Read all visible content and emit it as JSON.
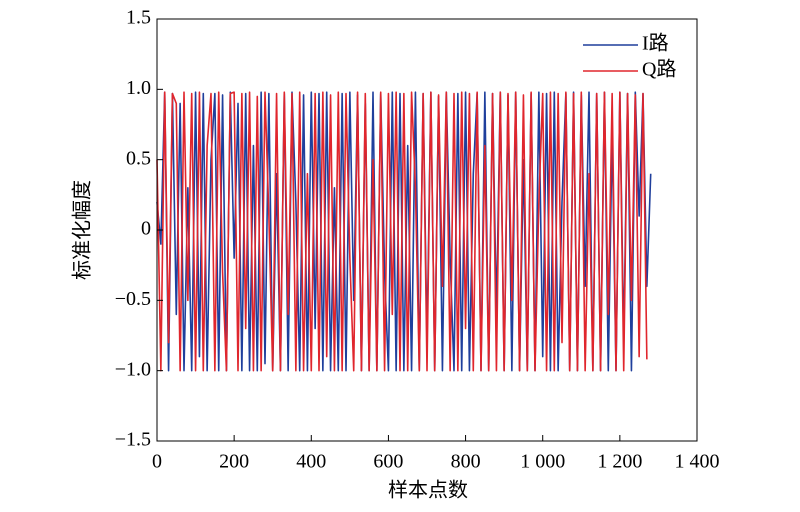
{
  "chart_data": {
    "type": "line",
    "xlabel": "样本点数",
    "ylabel": "标准化幅度",
    "x": [
      0,
      10,
      20,
      30,
      40,
      50,
      60,
      70,
      80,
      90,
      100,
      110,
      120,
      130,
      140,
      150,
      160,
      170,
      180,
      190,
      200,
      210,
      220,
      230,
      240,
      250,
      260,
      270,
      280,
      290,
      300,
      310,
      320,
      330,
      340,
      350,
      360,
      370,
      380,
      390,
      400,
      410,
      420,
      430,
      440,
      450,
      460,
      470,
      480,
      490,
      500,
      510,
      520,
      530,
      540,
      550,
      560,
      570,
      580,
      590,
      600,
      610,
      620,
      630,
      640,
      650,
      660,
      670,
      680,
      690,
      700,
      710,
      720,
      730,
      740,
      750,
      760,
      770,
      780,
      790,
      800,
      810,
      820,
      830,
      840,
      850,
      860,
      870,
      880,
      890,
      900,
      910,
      920,
      930,
      940,
      950,
      960,
      970,
      980,
      990,
      1000,
      1010,
      1020,
      1030,
      1040,
      1050,
      1060,
      1070,
      1080,
      1090,
      1100,
      1110,
      1120,
      1130,
      1140,
      1150,
      1160,
      1170,
      1180,
      1190,
      1200,
      1210,
      1220,
      1230,
      1240,
      1250,
      1260,
      1270,
      1280
    ],
    "series": [
      {
        "name": "I路",
        "color": "#1f3f9c",
        "values": [
          0.2,
          -0.1,
          0.98,
          -1,
          0.97,
          -0.6,
          0.9,
          -1,
          0.3,
          -1,
          0.98,
          -0.9,
          0.97,
          -1,
          0.5,
          0.97,
          -1,
          0.96,
          -1,
          0.98,
          -0.2,
          0.9,
          -1,
          0.97,
          -1,
          0.6,
          -1,
          0.98,
          -0.95,
          0.97,
          -1,
          0.4,
          -1,
          0.97,
          -1,
          0.98,
          0.2,
          -1,
          0.96,
          -1,
          0.98,
          -0.7,
          0.97,
          -1,
          0.98,
          -1,
          0.3,
          -1,
          0.97,
          -1,
          0.98,
          -0.5,
          0.96,
          -1,
          0.9,
          -1,
          0.98,
          -1,
          0.97,
          -0.3,
          -1,
          0.98,
          -1,
          0.97,
          -1,
          0.6,
          -1,
          0.98,
          -1,
          0.97,
          -0.8,
          0.98,
          -1,
          0.95,
          -1,
          0.98,
          -0.2,
          -1,
          0.97,
          -1,
          0.98,
          -1,
          0.4,
          0.97,
          -1,
          0.98,
          -1,
          0.97,
          -0.6,
          0.98,
          -1,
          0.96,
          -1,
          0.98,
          -1,
          0.5,
          -1,
          0.97,
          -1,
          0.98,
          -0.9,
          0.97,
          -1,
          0.98,
          -1,
          0.2,
          0.97,
          -1,
          0.98,
          -1,
          0.96,
          -0.4,
          0.98,
          -1,
          0.97,
          -1,
          0.98,
          -1,
          0.7,
          -1,
          0.98,
          -0.8,
          0.97,
          -1,
          0.98,
          0.1,
          0.97,
          -0.4,
          0.4
        ]
      },
      {
        "name": "Q路",
        "color": "#e0262d",
        "values": [
          0.5,
          -1,
          0.98,
          -0.8,
          0.97,
          0.9,
          -1,
          0.98,
          -0.5,
          0.97,
          -1,
          0.98,
          -1,
          0.6,
          0.97,
          -1,
          0.98,
          -0.3,
          -1,
          0.97,
          0.98,
          -1,
          0.97,
          -0.7,
          0.98,
          -1,
          0.95,
          -1,
          0.98,
          0.1,
          -1,
          0.97,
          -1,
          0.98,
          -0.6,
          0.97,
          -1,
          0.98,
          -1,
          0.4,
          -1,
          0.97,
          -1,
          0.98,
          -0.9,
          0.96,
          -1,
          0.98,
          -1,
          0.97,
          -0.2,
          -1,
          0.98,
          -1,
          0.97,
          -1,
          0.5,
          -1,
          0.98,
          -1,
          0.97,
          -0.6,
          0.98,
          -1,
          0.97,
          -1,
          0.98,
          0.3,
          -1,
          0.97,
          -1,
          0.98,
          -1,
          0.96,
          -0.4,
          0.98,
          -1,
          0.97,
          -1,
          0.98,
          -0.7,
          0.97,
          -1,
          0.98,
          -1,
          0.6,
          -1,
          0.97,
          -1,
          0.98,
          -1,
          0.97,
          -0.5,
          0.98,
          -1,
          0.96,
          -1,
          0.98,
          -1,
          0.2,
          0.97,
          -1,
          0.98,
          -1,
          0.97,
          -0.8,
          0.98,
          -1,
          0.97,
          -1,
          0.98,
          -1,
          0.4,
          -1,
          0.97,
          -1,
          0.98,
          -0.6,
          0.97,
          -1,
          0.98,
          -1,
          0.97,
          -0.5,
          0.96,
          -0.9,
          0.97,
          -0.92,
          null
        ]
      }
    ],
    "xlim": [
      0,
      1400
    ],
    "xticks": [
      0,
      200,
      400,
      600,
      800,
      {
        "value": 1000,
        "label": "1 000"
      },
      {
        "value": 1200,
        "label": "1 200"
      },
      {
        "value": 1400,
        "label": "1 400"
      }
    ],
    "ylim": [
      -1.5,
      1.5
    ],
    "yticks": [
      {
        "value": -1.5,
        "label": "−1.5"
      },
      {
        "value": -1.0,
        "label": "−1.0"
      },
      {
        "value": -0.5,
        "label": "−0.5"
      },
      0,
      0.5,
      {
        "value": 1.0,
        "label": "1.0"
      },
      1.5
    ],
    "grid": false,
    "legend": "upper right"
  }
}
